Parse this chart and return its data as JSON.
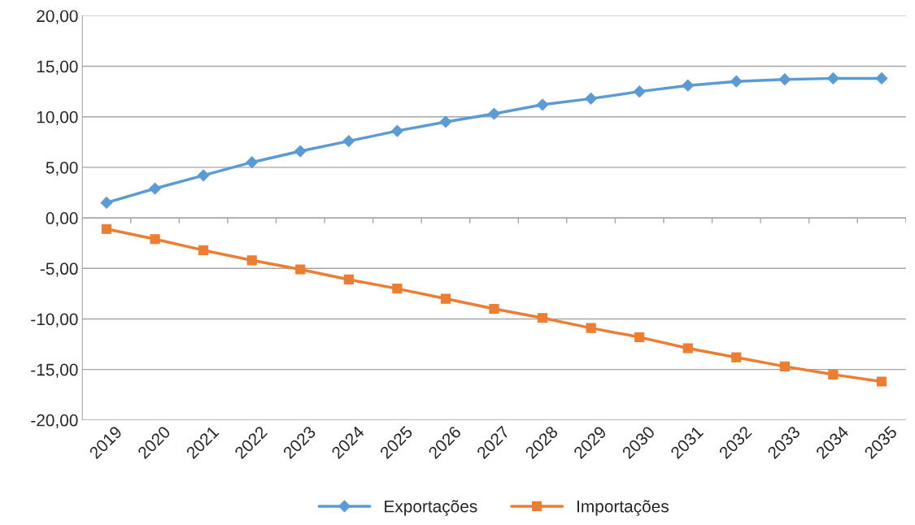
{
  "chart_data": {
    "type": "line",
    "categories": [
      "2019",
      "2020",
      "2021",
      "2022",
      "2023",
      "2024",
      "2025",
      "2026",
      "2027",
      "2028",
      "2029",
      "2030",
      "2031",
      "2032",
      "2033",
      "2034",
      "2035"
    ],
    "series": [
      {
        "name": "Exportações",
        "color": "#5b9bd5",
        "marker": "diamond",
        "values": [
          1.5,
          2.9,
          4.2,
          5.5,
          6.6,
          7.6,
          8.6,
          9.5,
          10.3,
          11.2,
          11.8,
          12.5,
          13.1,
          13.5,
          13.7,
          13.8,
          13.8
        ]
      },
      {
        "name": "Importações",
        "color": "#ed7d31",
        "marker": "square",
        "values": [
          -1.1,
          -2.1,
          -3.2,
          -4.2,
          -5.1,
          -6.1,
          -7.0,
          -8.0,
          -9.0,
          -9.9,
          -10.9,
          -11.8,
          -12.9,
          -13.8,
          -14.7,
          -15.5,
          -16.2
        ]
      }
    ],
    "ylim": [
      -20,
      20
    ],
    "yticks": [
      {
        "value": -20,
        "label": "-20,00"
      },
      {
        "value": -15,
        "label": "-15,00"
      },
      {
        "value": -10,
        "label": "-10,00"
      },
      {
        "value": -5,
        "label": "-5,00"
      },
      {
        "value": 0,
        "label": "0,00"
      },
      {
        "value": 5,
        "label": "5,00"
      },
      {
        "value": 10,
        "label": "10,00"
      },
      {
        "value": 15,
        "label": "15,00"
      },
      {
        "value": 20,
        "label": "20,00"
      }
    ],
    "grid": "y",
    "legend": "bottom",
    "line_style": "solid"
  }
}
